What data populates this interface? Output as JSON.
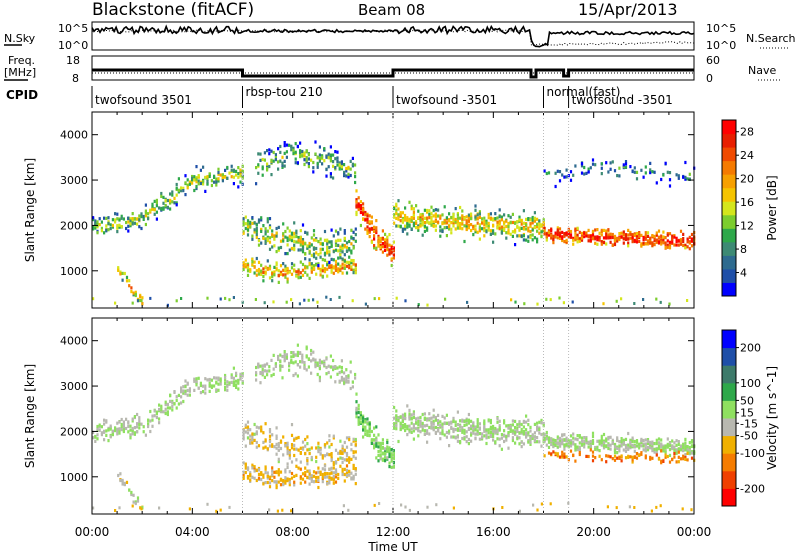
{
  "header": {
    "station": "Blackstone (fitACF)",
    "beam": "Beam 08",
    "date": "15/Apr/2013"
  },
  "summary_labels": {
    "nsky": "N.Sky",
    "nsearch": "N.Search",
    "freq": "Freq.",
    "freq_unit": "[MHz]",
    "nave": "Nave",
    "cpid": "CPID",
    "noise_ticks_left": [
      "10^5",
      "10^0"
    ],
    "noise_ticks_right": [
      "10^5",
      "10^0"
    ],
    "freq_ticks_left": [
      "18",
      "8"
    ],
    "nave_ticks_right": [
      "60",
      "0"
    ]
  },
  "colors": {
    "power_scale": [
      "#0000ff",
      "#1f4fa8",
      "#2e6b8f",
      "#3d8a74",
      "#2ea84a",
      "#7ccd2e",
      "#d4e61c",
      "#f5c400",
      "#f7a000",
      "#f57a00",
      "#f04a00",
      "#e81e00",
      "#ff0000"
    ],
    "velocity_scale": [
      "#ff0000",
      "#f04000",
      "#f57c00",
      "#f0b000",
      "#b8b8b0",
      "#8fe060",
      "#2ea84a",
      "#3d7a6a",
      "#1f4fa8",
      "#0000ff"
    ]
  },
  "chart_data": [
    {
      "type": "heatmap",
      "panel": "power",
      "ylabel": "Slant Range [km]",
      "xlabel": "Time UT",
      "xlim": [
        0,
        24
      ],
      "ylim": [
        180,
        4500
      ],
      "x_ticks": [
        "00:00",
        "04:00",
        "08:00",
        "12:00",
        "16:00",
        "20:00",
        "00:00"
      ],
      "y_ticks": [
        1000,
        2000,
        3000,
        4000
      ],
      "colorbar": {
        "label": "Power [dB]",
        "ticks": [
          4,
          8,
          12,
          16,
          20,
          24,
          28
        ],
        "range": [
          0,
          30
        ]
      },
      "cpid_segments": [
        {
          "start": 0,
          "end": 6,
          "label": "twofsound 3501"
        },
        {
          "start": 6,
          "end": 12,
          "label": "rbsp-tou 210"
        },
        {
          "start": 12,
          "end": 18,
          "label": "twofsound -3501"
        },
        {
          "start": 18,
          "end": 19,
          "label": "normal(fast)"
        },
        {
          "start": 19,
          "end": 24,
          "label": "twofsound -3501"
        }
      ],
      "bands": [
        {
          "t0": 0.0,
          "t1": 6.0,
          "r0": 1950,
          "r1": 2150,
          "r2": 3000,
          "r3": 3150,
          "w": 220,
          "p": 14,
          "density": 0.55
        },
        {
          "t0": 1.0,
          "t1": 2.0,
          "r0": 1050,
          "r1": 800,
          "r2": 500,
          "r3": 300,
          "w": 120,
          "p": 18,
          "density": 0.6
        },
        {
          "t0": 6.0,
          "t1": 10.5,
          "r0": 1100,
          "r1": 950,
          "r2": 1000,
          "r3": 1100,
          "w": 200,
          "p": 20,
          "density": 0.7
        },
        {
          "t0": 6.0,
          "t1": 10.5,
          "r0": 2000,
          "r1": 1700,
          "r2": 1500,
          "r3": 1600,
          "w": 350,
          "p": 15,
          "density": 0.45
        },
        {
          "t0": 6.5,
          "t1": 10.5,
          "r0": 3300,
          "r1": 3600,
          "r2": 3450,
          "r3": 3200,
          "w": 300,
          "p": 12,
          "density": 0.4
        },
        {
          "t0": 10.5,
          "t1": 12.0,
          "r0": 2500,
          "r1": 2000,
          "r2": 1600,
          "r3": 1400,
          "w": 300,
          "p": 26,
          "density": 0.85
        },
        {
          "t0": 12.0,
          "t1": 18.0,
          "r0": 2200,
          "r1": 2100,
          "r2": 2000,
          "r3": 1950,
          "w": 300,
          "p": 18,
          "density": 0.7
        },
        {
          "t0": 18.0,
          "t1": 24.0,
          "r0": 1800,
          "r1": 1750,
          "r2": 1700,
          "r3": 1650,
          "w": 180,
          "p": 27,
          "density": 0.85
        },
        {
          "t0": 18.0,
          "t1": 24.0,
          "r0": 3100,
          "r1": 3300,
          "r2": 3200,
          "r3": 3100,
          "w": 250,
          "p": 8,
          "density": 0.15
        }
      ]
    },
    {
      "type": "heatmap",
      "panel": "velocity",
      "ylabel": "Slant Range [km]",
      "xlabel": "Time UT",
      "xlim": [
        0,
        24
      ],
      "ylim": [
        180,
        4500
      ],
      "x_ticks": [
        "00:00",
        "04:00",
        "08:00",
        "12:00",
        "16:00",
        "20:00",
        "00:00"
      ],
      "y_ticks": [
        1000,
        2000,
        3000,
        4000
      ],
      "colorbar": {
        "label": "Velocity [m s^-1]",
        "ticks": [
          200,
          100,
          50,
          15,
          -15,
          -50,
          -100,
          -200
        ],
        "range": [
          -250,
          250
        ]
      },
      "bands": [
        {
          "t0": 0.0,
          "t1": 6.0,
          "r0": 1950,
          "r1": 2150,
          "r2": 3000,
          "r3": 3150,
          "w": 220,
          "v": 0,
          "density": 0.55
        },
        {
          "t0": 1.0,
          "t1": 2.0,
          "r0": 1050,
          "r1": 800,
          "r2": 500,
          "r3": 300,
          "w": 120,
          "v": -20,
          "density": 0.6
        },
        {
          "t0": 6.0,
          "t1": 10.5,
          "r0": 1100,
          "r1": 950,
          "r2": 1000,
          "r3": 1100,
          "w": 200,
          "v": -60,
          "density": 0.7
        },
        {
          "t0": 6.0,
          "t1": 10.5,
          "r0": 2000,
          "r1": 1700,
          "r2": 1500,
          "r3": 1600,
          "w": 350,
          "v": -40,
          "density": 0.4
        },
        {
          "t0": 6.5,
          "t1": 10.5,
          "r0": 3300,
          "r1": 3600,
          "r2": 3450,
          "r3": 3200,
          "w": 300,
          "v": 0,
          "density": 0.4
        },
        {
          "t0": 10.5,
          "t1": 12.0,
          "r0": 2500,
          "r1": 2000,
          "r2": 1600,
          "r3": 1400,
          "w": 300,
          "v": 40,
          "density": 0.85
        },
        {
          "t0": 12.0,
          "t1": 18.0,
          "r0": 2200,
          "r1": 2100,
          "r2": 2000,
          "r3": 1950,
          "w": 300,
          "v": 0,
          "density": 0.7
        },
        {
          "t0": 18.0,
          "t1": 24.0,
          "r0": 1800,
          "r1": 1750,
          "r2": 1700,
          "r3": 1650,
          "w": 180,
          "v": 0,
          "density": 0.85
        },
        {
          "t0": 18.0,
          "t1": 24.0,
          "r0": 1500,
          "r1": 1450,
          "r2": 1420,
          "r3": 1400,
          "w": 120,
          "v": -120,
          "density": 0.35
        }
      ]
    }
  ]
}
